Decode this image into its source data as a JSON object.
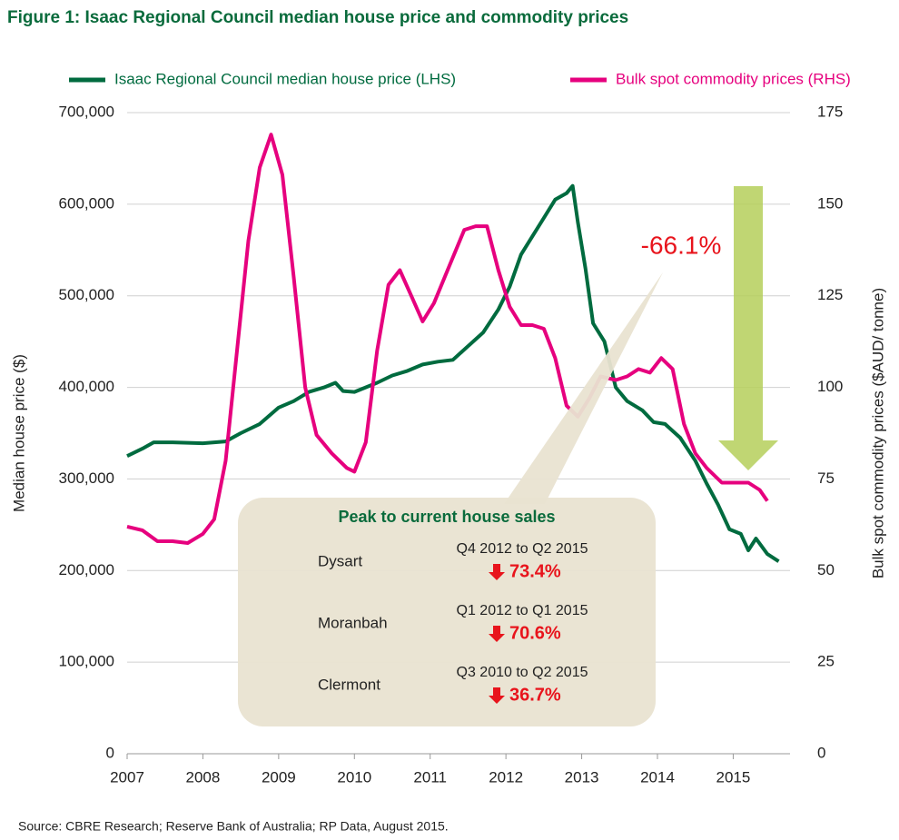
{
  "chart_data": {
    "type": "line",
    "title": "Figure 1: Isaac Regional Council median house price and commodity prices",
    "y_label": "Median house price ($)",
    "y2_label": "Bulk spot commodity prices ($AUD/ tonne)",
    "source": "Source: CBRE Research; Reserve Bank of Australia; RP Data, August 2015.",
    "legend": "top",
    "xlim": [
      2007,
      2015.75
    ],
    "xticks": [
      2007,
      2008,
      2009,
      2010,
      2011,
      2012,
      2013,
      2014,
      2015
    ],
    "ylim": [
      0,
      700000
    ],
    "yticks": [
      0,
      {
        "value": 100000,
        "label": "100,000"
      },
      {
        "value": 200000,
        "label": "200,000"
      },
      {
        "value": 300000,
        "label": "300,000"
      },
      {
        "value": 400000,
        "label": "400,000"
      },
      {
        "value": 500000,
        "label": "500,000"
      },
      {
        "value": 600000,
        "label": "600,000"
      },
      {
        "value": 700000,
        "label": "700,000"
      }
    ],
    "y2lim": [
      0,
      175
    ],
    "y2ticks": [
      0,
      25,
      50,
      75,
      100,
      125,
      150,
      175
    ],
    "grid": true,
    "series": [
      {
        "name": "Isaac Regional Council median house price (LHS)",
        "color": "#006b3f",
        "axis": "y",
        "x": [
          2007.0,
          2007.2,
          2007.35,
          2007.6,
          2008.0,
          2008.3,
          2008.5,
          2008.75,
          2009.0,
          2009.2,
          2009.4,
          2009.6,
          2009.75,
          2009.85,
          2010.0,
          2010.3,
          2010.5,
          2010.7,
          2010.9,
          2011.1,
          2011.3,
          2011.5,
          2011.7,
          2011.9,
          2012.05,
          2012.2,
          2012.35,
          2012.5,
          2012.65,
          2012.8,
          2012.88,
          2012.95,
          2013.05,
          2013.15,
          2013.3,
          2013.45,
          2013.6,
          2013.8,
          2013.95,
          2014.1,
          2014.3,
          2014.5,
          2014.65,
          2014.8,
          2014.95,
          2015.1,
          2015.2,
          2015.3,
          2015.45,
          2015.6
        ],
        "values": [
          325000,
          333000,
          340000,
          340000,
          339000,
          341000,
          350000,
          360000,
          378000,
          385000,
          395000,
          400000,
          405000,
          396000,
          395000,
          405000,
          413000,
          418000,
          425000,
          428000,
          430000,
          445000,
          460000,
          485000,
          510000,
          545000,
          565000,
          585000,
          605000,
          612000,
          620000,
          580000,
          530000,
          470000,
          450000,
          400000,
          385000,
          375000,
          362000,
          360000,
          345000,
          320000,
          295000,
          272000,
          245000,
          240000,
          222000,
          235000,
          218000,
          210000
        ]
      },
      {
        "name": "Bulk spot commodity prices (RHS)",
        "color": "#e6007e",
        "axis": "y2",
        "x": [
          2007.0,
          2007.2,
          2007.4,
          2007.6,
          2007.8,
          2008.0,
          2008.15,
          2008.3,
          2008.45,
          2008.6,
          2008.75,
          2008.9,
          2009.05,
          2009.2,
          2009.35,
          2009.5,
          2009.7,
          2009.9,
          2010.0,
          2010.15,
          2010.3,
          2010.45,
          2010.6,
          2010.75,
          2010.9,
          2011.05,
          2011.25,
          2011.45,
          2011.6,
          2011.75,
          2011.9,
          2012.05,
          2012.2,
          2012.35,
          2012.5,
          2012.65,
          2012.8,
          2012.95,
          2013.1,
          2013.25,
          2013.45,
          2013.6,
          2013.75,
          2013.9,
          2014.05,
          2014.2,
          2014.35,
          2014.5,
          2014.65,
          2014.85,
          2015.05,
          2015.2,
          2015.35,
          2015.45
        ],
        "values": [
          62,
          61,
          58,
          58,
          57.5,
          60,
          64,
          80,
          110,
          140,
          160,
          169,
          158,
          130,
          100,
          87,
          82,
          78,
          77,
          85,
          110,
          128,
          132,
          125,
          118,
          123,
          133,
          143,
          144,
          144,
          132,
          122,
          117,
          117,
          116,
          108,
          95,
          92,
          97,
          103,
          102,
          103,
          105,
          104,
          108,
          105,
          90,
          82,
          78,
          74,
          74,
          74,
          72,
          69
        ]
      }
    ],
    "annotation": "-66.1%",
    "callout": {
      "title": "Peak to current house sales",
      "rows": [
        {
          "place": "Dysart",
          "period": "Q4 2012 to Q2 2015",
          "change": "73.4%"
        },
        {
          "place": "Moranbah",
          "period": "Q1 2012 to Q1 2015",
          "change": "70.6%"
        },
        {
          "place": "Clermont",
          "period": "Q3 2010 to Q2 2015",
          "change": "36.7%"
        }
      ]
    }
  }
}
